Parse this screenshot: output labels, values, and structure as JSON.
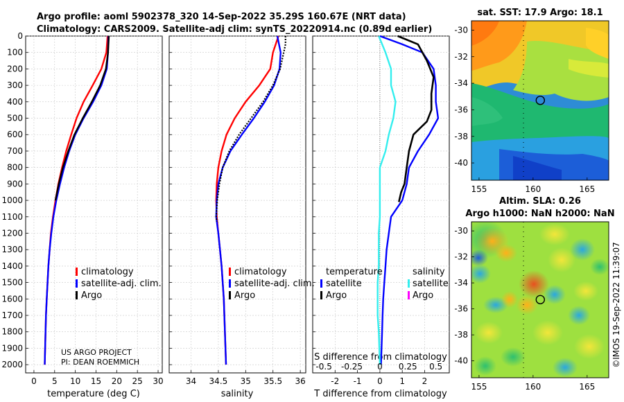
{
  "title": {
    "line1": "Argo profile: aoml 5902378_320 14-Sep-2022 35.29S 160.67E (NRT data)",
    "line2": "Climatology: CARS2009. Satellite-adj clim: synTS_20220914.nc (0.89d earlier)"
  },
  "credits": {
    "line1": "US ARGO PROJECT",
    "line2": "PI: DEAN ROEMMICH"
  },
  "timestamp": "©IMOS 19-Sep-2022 11:39:07",
  "colors": {
    "climatology": "#ff0000",
    "satellite": "#0000ff",
    "argo": "#000000",
    "satellite_s": "#33eeee",
    "argo_s": "#ff00ff"
  },
  "depth_axis": {
    "ticks": [
      "0",
      "100",
      "200",
      "300",
      "400",
      "500",
      "600",
      "700",
      "800",
      "900",
      "1000",
      "1100",
      "1200",
      "1300",
      "1400",
      "1500",
      "1600",
      "1700",
      "1800",
      "1900",
      "2000"
    ]
  },
  "chart_data": [
    {
      "type": "line",
      "xlabel": "temperature (deg C)",
      "ylabel": "depth",
      "xlim": [
        -2,
        31
      ],
      "ylim": [
        2050,
        0
      ],
      "xticks": [
        0,
        5,
        10,
        15,
        20,
        25,
        30
      ],
      "legend": [
        "climatology",
        "satellite-adj. clim.",
        "Argo"
      ],
      "series": [
        {
          "name": "climatology",
          "x": [
            17.8,
            17.5,
            16.3,
            14.2,
            12.0,
            10.3,
            9.0,
            7.8,
            6.8,
            5.9,
            5.2,
            4.6,
            4.1,
            3.8,
            3.5,
            3.3,
            3.1,
            2.9,
            2.8,
            2.7,
            2.6
          ],
          "y": [
            0,
            100,
            200,
            300,
            400,
            500,
            600,
            700,
            800,
            900,
            1000,
            1100,
            1200,
            1300,
            1400,
            1500,
            1600,
            1700,
            1800,
            1900,
            2000
          ]
        },
        {
          "name": "satellite-adj. clim.",
          "x": [
            18.0,
            17.9,
            17.6,
            16.3,
            14.3,
            12.0,
            10.0,
            8.5,
            7.3,
            6.3,
            5.4,
            4.7,
            4.2,
            3.8,
            3.5,
            3.3,
            3.1,
            2.9,
            2.8,
            2.7,
            2.6
          ],
          "y": [
            0,
            100,
            200,
            300,
            400,
            500,
            600,
            700,
            800,
            900,
            1000,
            1100,
            1200,
            1300,
            1400,
            1500,
            1600,
            1700,
            1800,
            1900,
            2000
          ]
        },
        {
          "name": "Argo",
          "x": [
            18.1,
            17.9,
            17.4,
            16.0,
            14.0,
            11.8,
            9.8,
            8.3,
            7.0,
            6.0,
            5.2
          ],
          "y": [
            0,
            100,
            200,
            300,
            400,
            500,
            600,
            700,
            800,
            900,
            1000
          ]
        }
      ]
    },
    {
      "type": "line",
      "xlabel": "salinity",
      "ylabel": "depth",
      "xlim": [
        33.6,
        36.1
      ],
      "ylim": [
        2050,
        0
      ],
      "xticks": [
        34,
        34.5,
        35,
        35.5,
        36
      ],
      "legend": [
        "climatology",
        "satellite-adj. clim.",
        "Argo"
      ],
      "series": [
        {
          "name": "climatology",
          "x": [
            35.6,
            35.5,
            35.45,
            35.25,
            35.0,
            34.8,
            34.65,
            34.56,
            34.5,
            34.47,
            34.46,
            34.47,
            34.5,
            34.53,
            34.56,
            34.58,
            34.6,
            34.61,
            34.62,
            34.63,
            34.64
          ],
          "y": [
            0,
            100,
            200,
            300,
            400,
            500,
            600,
            700,
            800,
            900,
            1000,
            1100,
            1200,
            1300,
            1400,
            1500,
            1600,
            1700,
            1800,
            1900,
            2000
          ]
        },
        {
          "name": "satellite-adj. clim.",
          "x": [
            35.58,
            35.64,
            35.62,
            35.52,
            35.35,
            35.15,
            34.93,
            34.72,
            34.58,
            34.5,
            34.47,
            34.46,
            34.5,
            34.53,
            34.56,
            34.58,
            34.6,
            34.61,
            34.62,
            34.63,
            34.64
          ],
          "y": [
            0,
            100,
            200,
            300,
            400,
            500,
            600,
            700,
            800,
            900,
            1000,
            1100,
            1200,
            1300,
            1400,
            1500,
            1600,
            1700,
            1800,
            1900,
            2000
          ]
        },
        {
          "name": "Argo",
          "x": [
            35.73,
            35.73,
            35.63,
            35.5,
            35.32,
            35.1,
            34.88,
            34.7,
            34.58,
            34.52,
            34.48,
            34.46,
            34.47
          ],
          "y": [
            0,
            50,
            200,
            300,
            400,
            500,
            600,
            700,
            800,
            900,
            1000,
            1100,
            1130
          ]
        }
      ]
    },
    {
      "type": "line",
      "xlabel": "T difference from climatology",
      "xlabel2": "S difference from climatology",
      "xlim": [
        -3.0,
        3.1
      ],
      "ylim": [
        2050,
        0
      ],
      "xticks": [
        -2,
        -1,
        0,
        1,
        2
      ],
      "xticks2": [
        -0.5,
        -0.25,
        0,
        0.25,
        0.5
      ],
      "legend_temperature_title": "temperature",
      "legend_salinity_title": "salinity",
      "legend_temperature": [
        "satellite",
        "Argo"
      ],
      "legend_salinity": [
        "satellite",
        "Argo"
      ],
      "series": [
        {
          "name": "T satellite",
          "x": [
            0.0,
            1.0,
            1.9,
            2.4,
            2.5,
            2.5,
            2.6,
            2.2,
            1.7,
            1.3,
            1.2,
            1.0,
            0.5,
            0.4,
            0.3,
            0.25,
            0.2,
            0.15,
            0.12,
            0.1,
            0.05
          ],
          "y": [
            0,
            50,
            100,
            200,
            300,
            400,
            500,
            600,
            700,
            800,
            900,
            1000,
            1100,
            1200,
            1300,
            1400,
            1500,
            1600,
            1700,
            1800,
            2000
          ]
        },
        {
          "name": "T Argo",
          "x": [
            0.8,
            1.7,
            2.1,
            2.4,
            2.3,
            2.3,
            2.1,
            1.5,
            1.3,
            1.2,
            1.1,
            0.95,
            0.85
          ],
          "y": [
            0,
            50,
            150,
            250,
            350,
            450,
            520,
            600,
            700,
            800,
            900,
            950,
            1010
          ]
        },
        {
          "name": "S satellite",
          "x": [
            -0.01,
            0.05,
            0.1,
            0.1,
            0.14,
            0.12,
            0.08,
            0.05,
            0.0,
            0.0,
            0.0,
            0.0,
            -0.01,
            -0.01,
            -0.01,
            -0.02,
            -0.02,
            -0.02,
            -0.01,
            0.0
          ],
          "y": [
            0,
            100,
            200,
            300,
            400,
            500,
            600,
            700,
            800,
            900,
            1000,
            1100,
            1200,
            1300,
            1400,
            1500,
            1600,
            1700,
            1800,
            2000
          ]
        }
      ]
    },
    {
      "type": "heatmap",
      "title": "sat. SST: 17.9 Argo: 18.1",
      "xlim": [
        154.3,
        167
      ],
      "ylim": [
        -41.3,
        -29.3
      ],
      "xticks": [
        155,
        160,
        165
      ],
      "yticks": [
        -30,
        -32,
        -34,
        -36,
        -38,
        -40
      ],
      "float_location": {
        "lon": 160.67,
        "lat": -35.29
      }
    },
    {
      "type": "heatmap",
      "title": "Altim. SLA: 0.26",
      "subtitle": "Argo h1000: NaN h2000: NaN",
      "xlim": [
        154.3,
        167
      ],
      "ylim": [
        -41.3,
        -29.3
      ],
      "xticks": [
        155,
        160,
        165
      ],
      "yticks": [
        -30,
        -32,
        -34,
        -36,
        -38,
        -40
      ],
      "float_location": {
        "lon": 160.67,
        "lat": -35.29
      }
    }
  ]
}
